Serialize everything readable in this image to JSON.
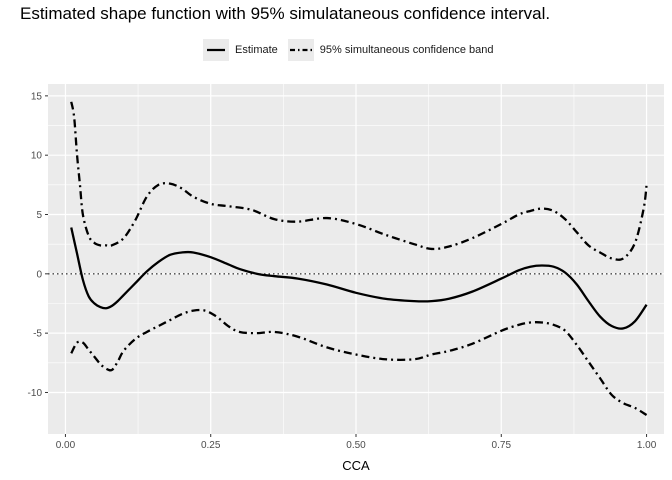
{
  "chart_data": {
    "type": "line",
    "title": "Estimated shape function with 95% simulataneous confidence interval.",
    "xlabel": "CCA",
    "ylabel": "",
    "xlim": [
      -0.03,
      1.03
    ],
    "ylim": [
      -13.5,
      16
    ],
    "x_ticks": [
      0.0,
      0.25,
      0.5,
      0.75,
      1.0
    ],
    "x_tick_labels": [
      "0.00",
      "0.25",
      "0.50",
      "0.75",
      "1.00"
    ],
    "y_ticks": [
      -10,
      -5,
      0,
      5,
      10,
      15
    ],
    "y_tick_labels": [
      "-10",
      "-5",
      "0",
      "5",
      "10",
      "15"
    ],
    "grid": true,
    "legend_position": "top",
    "reference_line": {
      "y": 0,
      "style": "dotted"
    },
    "series": [
      {
        "name": "Estimate",
        "style": "solid",
        "color": "#000000",
        "x": [
          0.01,
          0.02,
          0.03,
          0.04,
          0.05,
          0.06,
          0.07,
          0.08,
          0.09,
          0.1,
          0.12,
          0.14,
          0.16,
          0.18,
          0.2,
          0.22,
          0.25,
          0.28,
          0.3,
          0.33,
          0.36,
          0.4,
          0.45,
          0.5,
          0.55,
          0.6,
          0.63,
          0.66,
          0.7,
          0.75,
          0.78,
          0.8,
          0.82,
          0.84,
          0.86,
          0.88,
          0.9,
          0.92,
          0.94,
          0.96,
          0.98,
          1.0
        ],
        "y": [
          3.9,
          1.7,
          -0.5,
          -1.9,
          -2.5,
          -2.8,
          -2.9,
          -2.7,
          -2.3,
          -1.8,
          -0.8,
          0.2,
          1.0,
          1.6,
          1.8,
          1.8,
          1.4,
          0.8,
          0.4,
          0.0,
          -0.2,
          -0.4,
          -0.9,
          -1.6,
          -2.1,
          -2.3,
          -2.3,
          -2.1,
          -1.5,
          -0.4,
          0.3,
          0.6,
          0.7,
          0.6,
          0.1,
          -0.9,
          -2.3,
          -3.6,
          -4.4,
          -4.6,
          -4.0,
          -2.6
        ]
      },
      {
        "name": "95% simultaneous confidence band",
        "style": "dotdash",
        "color": "#000000",
        "x": [
          0.01,
          0.015,
          0.02,
          0.025,
          0.03,
          0.04,
          0.05,
          0.06,
          0.07,
          0.08,
          0.1,
          0.12,
          0.14,
          0.16,
          0.18,
          0.2,
          0.22,
          0.25,
          0.28,
          0.32,
          0.36,
          0.4,
          0.45,
          0.5,
          0.55,
          0.6,
          0.63,
          0.66,
          0.7,
          0.75,
          0.78,
          0.8,
          0.82,
          0.84,
          0.86,
          0.88,
          0.9,
          0.92,
          0.94,
          0.96,
          0.98,
          0.995,
          1.0
        ],
        "y": [
          14.5,
          13.2,
          10.0,
          7.5,
          5.0,
          3.2,
          2.6,
          2.4,
          2.4,
          2.4,
          3.0,
          4.5,
          6.5,
          7.5,
          7.6,
          7.2,
          6.5,
          5.9,
          5.7,
          5.4,
          4.6,
          4.4,
          4.7,
          4.2,
          3.3,
          2.5,
          2.1,
          2.3,
          3.0,
          4.2,
          5.0,
          5.3,
          5.5,
          5.3,
          4.6,
          3.5,
          2.4,
          1.8,
          1.3,
          1.3,
          2.6,
          5.5,
          7.5
        ]
      },
      {
        "name": "95% simultaneous confidence band",
        "style": "dotdash",
        "color": "#000000",
        "x": [
          0.01,
          0.02,
          0.03,
          0.04,
          0.05,
          0.06,
          0.07,
          0.08,
          0.09,
          0.1,
          0.12,
          0.14,
          0.16,
          0.18,
          0.2,
          0.22,
          0.24,
          0.26,
          0.28,
          0.3,
          0.33,
          0.36,
          0.4,
          0.45,
          0.5,
          0.55,
          0.6,
          0.63,
          0.66,
          0.7,
          0.75,
          0.78,
          0.8,
          0.82,
          0.84,
          0.86,
          0.88,
          0.9,
          0.92,
          0.94,
          0.96,
          0.98,
          1.0
        ],
        "y": [
          -6.7,
          -5.8,
          -5.8,
          -6.4,
          -7.0,
          -7.6,
          -8.0,
          -8.1,
          -7.4,
          -6.5,
          -5.5,
          -4.9,
          -4.4,
          -3.9,
          -3.4,
          -3.1,
          -3.1,
          -3.6,
          -4.4,
          -4.9,
          -5.0,
          -4.9,
          -5.3,
          -6.2,
          -6.8,
          -7.2,
          -7.2,
          -6.8,
          -6.5,
          -5.9,
          -4.8,
          -4.3,
          -4.1,
          -4.1,
          -4.3,
          -4.8,
          -6.0,
          -7.4,
          -8.8,
          -10.2,
          -10.9,
          -11.3,
          -11.9
        ]
      }
    ]
  }
}
